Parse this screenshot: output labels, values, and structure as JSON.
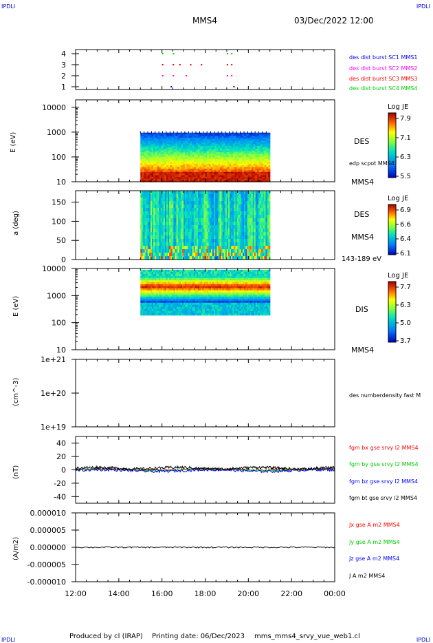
{
  "header": {
    "corner_tl": "IPDLI",
    "corner_tr": "IPDLI",
    "corner_bl": "IPDLI",
    "corner_br": "IPDLI",
    "spacecraft": "MMS4",
    "datetime": "03/Dec/2022 12:00"
  },
  "footer": {
    "produced_by": "Produced by cl (IRAP)",
    "printing_date": "Printing date: 06/Dec/2023",
    "filename": "mms_mms4_srvy_vue_web1.cl"
  },
  "colors": {
    "burst1": "#0000ff",
    "burst2": "#ff00ff",
    "burst3": "#ff0000",
    "burst4": "#00cc00",
    "bx": "#ff0000",
    "by": "#00cc00",
    "bz": "#0000ff",
    "bt": "#000000"
  },
  "chart_data": [
    {
      "type": "scatter",
      "panel": "burst",
      "yticks": [
        "4",
        "3",
        "2",
        "1"
      ],
      "legend": [
        "des dist burst SC1 MMS1",
        "des dist burst SC2 MMS2",
        "des dist burst SC3 MMS3",
        "des dist burst SC4 MMS4"
      ],
      "series": [
        {
          "name": "des dist burst SC1 MMS1",
          "y": 1,
          "x_hours": [
            16.4,
            19.3
          ]
        },
        {
          "name": "des dist burst SC2 MMS2",
          "y": 2,
          "x_hours": [
            16.0,
            16.5,
            17.1,
            19.0,
            19.2
          ]
        },
        {
          "name": "des dist burst SC3 MMS3",
          "y": 3,
          "x_hours": [
            16.0,
            16.5,
            16.8,
            17.3,
            17.8,
            19.0,
            19.2
          ]
        },
        {
          "name": "des dist burst SC4 MMS4",
          "y": 4,
          "x_hours": [
            16.0,
            16.5,
            19.0,
            19.2
          ]
        }
      ]
    },
    {
      "type": "heatmap",
      "panel": "des-energy",
      "ylabel": "E (eV)",
      "yticks": [
        "10000",
        "1000",
        "100",
        "10"
      ],
      "ylim": [
        10,
        20000
      ],
      "x_range_hours": [
        15.0,
        21.0
      ],
      "label": "DES",
      "label2": "edp scpot MMS4",
      "label3": "MMS4",
      "colorbar": {
        "title": "Log JE",
        "ticks": [
          "7.9",
          "7.1",
          "6.3",
          "5.5"
        ],
        "range": [
          5.5,
          7.9
        ]
      }
    },
    {
      "type": "heatmap",
      "panel": "des-pitch",
      "ylabel": "a (deg)",
      "yticks": [
        "150",
        "100",
        "50",
        "0"
      ],
      "ylim": [
        0,
        180
      ],
      "x_range_hours": [
        15.0,
        21.0
      ],
      "label": "DES",
      "label2": "MMS4",
      "label3": "143-189 eV",
      "colorbar": {
        "title": "Log JE",
        "ticks": [
          "6.9",
          "6.6",
          "6.4",
          "6.1"
        ],
        "range": [
          6.1,
          6.9
        ]
      }
    },
    {
      "type": "heatmap",
      "panel": "dis-energy",
      "ylabel": "E (eV)",
      "yticks": [
        "10000",
        "1000",
        "100",
        "10"
      ],
      "ylim": [
        10,
        10000
      ],
      "x_range_hours": [
        15.0,
        21.0
      ],
      "label": "DIS",
      "label2": "MMS4",
      "colorbar": {
        "title": "Log JE",
        "ticks": [
          "7.7",
          "6.3",
          "5.0",
          "3.7"
        ],
        "range": [
          3.7,
          7.7
        ]
      }
    },
    {
      "type": "line",
      "panel": "density",
      "ylabel": "(cm^-3)",
      "yticks": [
        "1e+21",
        "1e+20",
        "1e+19"
      ],
      "legend": [
        "des numberdensity fast M"
      ]
    },
    {
      "type": "line",
      "panel": "fgm",
      "ylabel": "(nT)",
      "yticks": [
        "40",
        "20",
        "0",
        "-20",
        "-40"
      ],
      "ylim": [
        -50,
        50
      ],
      "legend": [
        "fgm bx gse srvy l2 MMS4",
        "fgm by gse srvy l2 MMS4",
        "fgm bz gse srvy l2 MMS4",
        "fgm bt gse srvy l2 MMS4"
      ]
    },
    {
      "type": "line",
      "panel": "current",
      "ylabel": "(A/m2)",
      "yticks": [
        "0.000010",
        "0.000005",
        "0.000000",
        "-0.000005",
        "-0.000010"
      ],
      "ylim": [
        -1e-05,
        1e-05
      ],
      "legend": [
        "Jx gse A m2 MMS4",
        "Jy gse A m2 MMS4",
        "Jz gse A m2 MMS4",
        "J A m2 MMS4"
      ]
    }
  ],
  "xaxis": {
    "ticks": [
      "12:00",
      "14:00",
      "16:00",
      "18:00",
      "20:00",
      "22:00",
      "00:00"
    ],
    "range_hours": [
      12,
      24
    ]
  }
}
